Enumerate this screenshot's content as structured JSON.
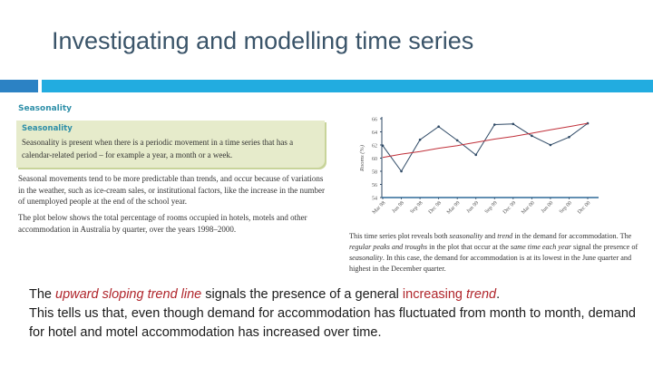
{
  "slide": {
    "title": "Investigating and modelling time series",
    "accent_colors": {
      "bar_left": "#2C82C4",
      "bar_right": "#22ACE0",
      "title": "#3A5469",
      "highlight": "#B0262C"
    }
  },
  "textbook": {
    "section_heading": "Seasonality",
    "definition_box": {
      "title": "Seasonality",
      "text": "Seasonality is present when there is a periodic movement in a time series that has a calendar-related period – for example a year, a month or a week."
    },
    "paragraphs": [
      "Seasonal movements tend to be more predictable than trends, and occur because of variations in the weather, such as ice-cream sales, or institutional factors, like the increase in the number of unemployed people at the end of the school year.",
      "The plot below shows the total percentage of rooms occupied in hotels, motels and other accommodation in Australia by quarter, over the years 1998–2000."
    ],
    "caption": {
      "s1_a": "This time series plot reveals both ",
      "s1_em1": "seasonality",
      "s1_b": " and ",
      "s1_em2": "trend",
      "s1_c": " in the demand for accommodation. The ",
      "s2_em1": "regular peaks and troughs",
      "s2_b": " in the plot that occur at the ",
      "s2_em2": "same time each year",
      "s2_c": " signal the presence of ",
      "s2_em3": "seasonality",
      "s2_d": ". In this case, the demand for accommodation is at its lowest in the June quarter and highest in the December quarter."
    }
  },
  "bottom": {
    "p1_a": "The ",
    "p1_hl1": "upward sloping trend line",
    "p1_b": " signals the presence of a general ",
    "p1_hl2": "increasing trend",
    "p1_c": ".",
    "p2": "This tells us that, even though demand for accommodation has fluctuated from month to month, demand for hotel and motel accommodation has increased over time."
  },
  "chart_data": {
    "type": "line",
    "title": "",
    "xlabel": "",
    "ylabel": "Rooms (%)",
    "categories": [
      "Mar 98",
      "Jun 98",
      "Sep 98",
      "Dec 98",
      "Mar 99",
      "Jun 99",
      "Sep 99",
      "Dec 99",
      "Mar 00",
      "Jun 00",
      "Sep 00",
      "Dec 00"
    ],
    "series": [
      {
        "name": "Rooms occupied (%)",
        "color": "#2F4A66",
        "values": [
          61.9,
          58.0,
          62.8,
          64.8,
          62.7,
          60.5,
          65.1,
          65.2,
          63.4,
          62.0,
          63.2,
          65.3
        ]
      },
      {
        "name": "Trend line",
        "color": "#C0303A",
        "values": [
          60.1,
          60.6,
          61.0,
          61.5,
          61.9,
          62.4,
          62.9,
          63.3,
          63.8,
          64.3,
          64.8,
          65.3
        ]
      }
    ],
    "yticks": [
      54,
      56,
      58,
      60,
      62,
      64,
      66
    ],
    "ylim": [
      54,
      66
    ],
    "grid": false,
    "legend": "none"
  }
}
